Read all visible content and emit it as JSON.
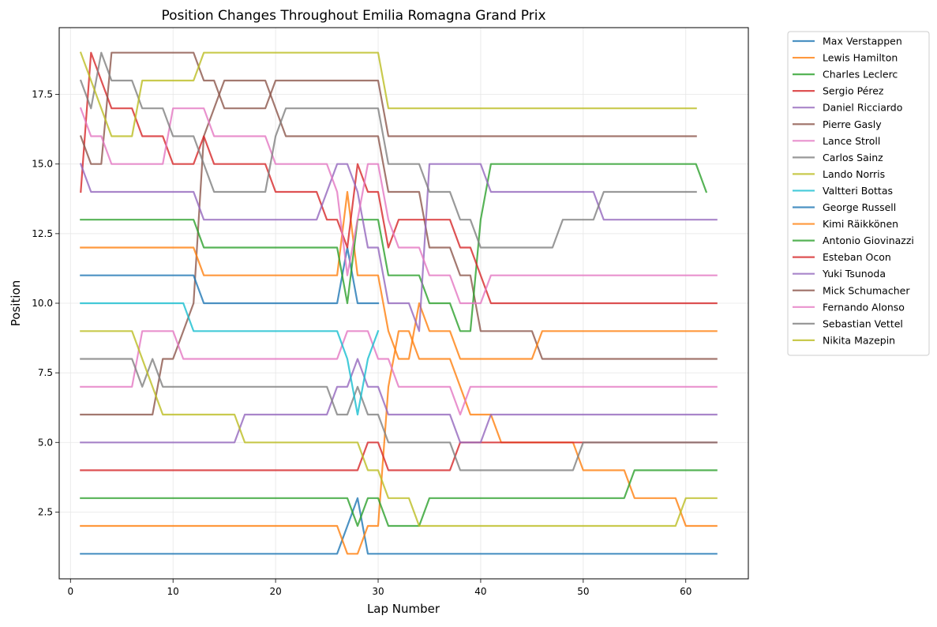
{
  "chart_data": {
    "type": "line",
    "title": "Position Changes Throughout Emilia Romagna Grand Prix",
    "xlabel": "Lap Number",
    "ylabel": "Position",
    "xlim": [
      -1.1,
      66.1
    ],
    "ylim": [
      19.9,
      0.1
    ],
    "y_inverted": true,
    "x_ticks": [
      0,
      10,
      20,
      30,
      40,
      50,
      60
    ],
    "x_tick_labels": [
      "0",
      "10",
      "20",
      "30",
      "40",
      "50",
      "60"
    ],
    "y_ticks": [
      2.5,
      5.0,
      7.5,
      10.0,
      12.5,
      15.0,
      17.5
    ],
    "y_tick_labels": [
      "2.5",
      "5.0",
      "7.5",
      "10.0",
      "12.5",
      "15.0",
      "17.5"
    ],
    "grid": true,
    "legend_position": "outside-right",
    "series": [
      {
        "name": "Max Verstappen",
        "color": "#1f77b4",
        "points": [
          [
            1,
            1
          ],
          [
            26,
            1
          ],
          [
            28,
            3
          ],
          [
            29,
            1
          ],
          [
            63,
            1
          ]
        ]
      },
      {
        "name": "Lewis Hamilton",
        "color": "#ff7f0e",
        "points": [
          [
            1,
            2
          ],
          [
            26,
            2
          ],
          [
            27,
            1
          ],
          [
            28,
            1
          ],
          [
            29,
            2
          ],
          [
            30,
            2
          ],
          [
            31,
            7
          ],
          [
            32,
            9
          ],
          [
            33,
            9
          ],
          [
            34,
            8
          ],
          [
            37,
            8
          ],
          [
            38,
            7
          ],
          [
            39,
            6
          ],
          [
            40,
            6
          ],
          [
            41,
            6
          ],
          [
            42,
            5
          ],
          [
            49,
            5
          ],
          [
            50,
            4
          ],
          [
            54,
            4
          ],
          [
            55,
            3
          ],
          [
            59,
            3
          ],
          [
            60,
            2
          ],
          [
            63,
            2
          ]
        ]
      },
      {
        "name": "Charles Leclerc",
        "color": "#2ca02c",
        "points": [
          [
            1,
            3
          ],
          [
            27,
            3
          ],
          [
            28,
            2
          ],
          [
            29,
            3
          ],
          [
            30,
            3
          ],
          [
            31,
            2
          ],
          [
            34,
            2
          ],
          [
            35,
            3
          ],
          [
            54,
            3
          ],
          [
            55,
            4
          ],
          [
            63,
            4
          ]
        ]
      },
      {
        "name": "Sergio Pérez",
        "color": "#d62728",
        "points": [
          [
            1,
            4
          ],
          [
            28,
            4
          ],
          [
            29,
            5
          ],
          [
            30,
            5
          ],
          [
            31,
            4
          ],
          [
            37,
            4
          ],
          [
            38,
            5
          ],
          [
            63,
            5
          ]
        ]
      },
      {
        "name": "Daniel Ricciardo",
        "color": "#9467bd",
        "points": [
          [
            1,
            5
          ],
          [
            16,
            5
          ],
          [
            17,
            6
          ],
          [
            25,
            6
          ],
          [
            26,
            7
          ],
          [
            27,
            7
          ],
          [
            28,
            8
          ],
          [
            29,
            7
          ],
          [
            30,
            7
          ],
          [
            31,
            6
          ],
          [
            37,
            6
          ],
          [
            38,
            5
          ],
          [
            40,
            5
          ],
          [
            41,
            6
          ],
          [
            63,
            6
          ]
        ]
      },
      {
        "name": "Pierre Gasly",
        "color": "#8c564b",
        "points": [
          [
            1,
            6
          ],
          [
            8,
            6
          ],
          [
            9,
            8
          ],
          [
            10,
            8
          ],
          [
            11,
            9
          ],
          [
            12,
            10
          ],
          [
            13,
            16
          ],
          [
            14,
            17
          ],
          [
            15,
            18
          ],
          [
            19,
            18
          ],
          [
            20,
            17
          ],
          [
            21,
            16
          ],
          [
            30,
            16
          ],
          [
            31,
            14
          ],
          [
            34,
            14
          ],
          [
            35,
            12
          ],
          [
            37,
            12
          ],
          [
            38,
            11
          ],
          [
            39,
            11
          ],
          [
            40,
            9
          ],
          [
            45,
            9
          ],
          [
            46,
            8
          ],
          [
            63,
            8
          ]
        ]
      },
      {
        "name": "Lance Stroll",
        "color": "#e377c2",
        "points": [
          [
            1,
            7
          ],
          [
            6,
            7
          ],
          [
            7,
            9
          ],
          [
            10,
            9
          ],
          [
            11,
            8
          ],
          [
            26,
            8
          ],
          [
            27,
            9
          ],
          [
            29,
            9
          ],
          [
            30,
            8
          ],
          [
            31,
            8
          ],
          [
            32,
            7
          ],
          [
            37,
            7
          ],
          [
            38,
            6
          ],
          [
            39,
            7
          ],
          [
            63,
            7
          ]
        ]
      },
      {
        "name": "Carlos Sainz",
        "color": "#7f7f7f",
        "points": [
          [
            1,
            8
          ],
          [
            6,
            8
          ],
          [
            7,
            7
          ],
          [
            8,
            8
          ],
          [
            9,
            7
          ],
          [
            25,
            7
          ],
          [
            26,
            6
          ],
          [
            27,
            6
          ],
          [
            28,
            7
          ],
          [
            29,
            6
          ],
          [
            30,
            6
          ],
          [
            31,
            5
          ],
          [
            37,
            5
          ],
          [
            38,
            4
          ],
          [
            49,
            4
          ],
          [
            50,
            5
          ],
          [
            63,
            5
          ]
        ]
      },
      {
        "name": "Lando Norris",
        "color": "#bcbd22",
        "points": [
          [
            1,
            9
          ],
          [
            6,
            9
          ],
          [
            9,
            6
          ],
          [
            16,
            6
          ],
          [
            17,
            5
          ],
          [
            28,
            5
          ],
          [
            29,
            4
          ],
          [
            30,
            4
          ],
          [
            31,
            3
          ],
          [
            33,
            3
          ],
          [
            34,
            2
          ],
          [
            59,
            2
          ],
          [
            60,
            3
          ],
          [
            63,
            3
          ]
        ]
      },
      {
        "name": "Valtteri Bottas",
        "color": "#17becf",
        "points": [
          [
            1,
            10
          ],
          [
            11,
            10
          ],
          [
            12,
            9
          ],
          [
            26,
            9
          ],
          [
            27,
            8
          ],
          [
            28,
            6
          ],
          [
            29,
            8
          ],
          [
            30,
            9
          ]
        ]
      },
      {
        "name": "George Russell",
        "color": "#1f77b4",
        "points": [
          [
            1,
            11
          ],
          [
            12,
            11
          ],
          [
            13,
            10
          ],
          [
            26,
            10
          ],
          [
            27,
            12
          ],
          [
            28,
            10
          ],
          [
            30,
            10
          ]
        ]
      },
      {
        "name": "Kimi Räikkönen",
        "color": "#ff7f0e",
        "points": [
          [
            1,
            12
          ],
          [
            12,
            12
          ],
          [
            13,
            11
          ],
          [
            26,
            11
          ],
          [
            27,
            14
          ],
          [
            28,
            11
          ],
          [
            30,
            11
          ],
          [
            31,
            9
          ],
          [
            32,
            8
          ],
          [
            33,
            8
          ],
          [
            34,
            10
          ],
          [
            35,
            9
          ],
          [
            37,
            9
          ],
          [
            38,
            8
          ],
          [
            45,
            8
          ],
          [
            46,
            9
          ],
          [
            63,
            9
          ]
        ]
      },
      {
        "name": "Antonio Giovinazzi",
        "color": "#2ca02c",
        "points": [
          [
            1,
            13
          ],
          [
            12,
            13
          ],
          [
            13,
            12
          ],
          [
            26,
            12
          ],
          [
            27,
            10
          ],
          [
            28,
            13
          ],
          [
            30,
            13
          ],
          [
            31,
            11
          ],
          [
            34,
            11
          ],
          [
            35,
            10
          ],
          [
            37,
            10
          ],
          [
            38,
            9
          ],
          [
            39,
            9
          ],
          [
            40,
            13
          ],
          [
            41,
            15
          ],
          [
            61,
            15
          ],
          [
            62,
            14
          ]
        ]
      },
      {
        "name": "Esteban Ocon",
        "color": "#d62728",
        "points": [
          [
            1,
            14
          ],
          [
            2,
            19
          ],
          [
            3,
            18
          ],
          [
            4,
            17
          ],
          [
            6,
            17
          ],
          [
            7,
            16
          ],
          [
            9,
            16
          ],
          [
            10,
            15
          ],
          [
            12,
            15
          ],
          [
            13,
            16
          ],
          [
            14,
            15
          ],
          [
            19,
            15
          ],
          [
            20,
            14
          ],
          [
            24,
            14
          ],
          [
            25,
            13
          ],
          [
            26,
            13
          ],
          [
            27,
            12
          ],
          [
            28,
            15
          ],
          [
            29,
            14
          ],
          [
            30,
            14
          ],
          [
            31,
            12
          ],
          [
            32,
            13
          ],
          [
            37,
            13
          ],
          [
            38,
            12
          ],
          [
            39,
            12
          ],
          [
            40,
            11
          ],
          [
            41,
            10
          ],
          [
            63,
            10
          ]
        ]
      },
      {
        "name": "Yuki Tsunoda",
        "color": "#9467bd",
        "points": [
          [
            1,
            15
          ],
          [
            2,
            14
          ],
          [
            12,
            14
          ],
          [
            13,
            13
          ],
          [
            24,
            13
          ],
          [
            25,
            14
          ],
          [
            26,
            15
          ],
          [
            27,
            15
          ],
          [
            28,
            14
          ],
          [
            29,
            12
          ],
          [
            30,
            12
          ],
          [
            31,
            10
          ],
          [
            33,
            10
          ],
          [
            34,
            9
          ],
          [
            35,
            15
          ],
          [
            40,
            15
          ],
          [
            41,
            14
          ],
          [
            50,
            14
          ],
          [
            51,
            14
          ],
          [
            52,
            13
          ],
          [
            63,
            13
          ]
        ]
      },
      {
        "name": "Mick Schumacher",
        "color": "#8c564b",
        "points": [
          [
            1,
            16
          ],
          [
            2,
            15
          ],
          [
            3,
            15
          ],
          [
            4,
            19
          ],
          [
            12,
            19
          ],
          [
            13,
            18
          ],
          [
            14,
            18
          ],
          [
            15,
            17
          ],
          [
            19,
            17
          ],
          [
            20,
            18
          ],
          [
            30,
            18
          ],
          [
            31,
            16
          ],
          [
            61,
            16
          ]
        ]
      },
      {
        "name": "Fernando Alonso",
        "color": "#e377c2",
        "points": [
          [
            1,
            17
          ],
          [
            2,
            16
          ],
          [
            3,
            16
          ],
          [
            4,
            15
          ],
          [
            9,
            15
          ],
          [
            10,
            17
          ],
          [
            13,
            17
          ],
          [
            14,
            16
          ],
          [
            19,
            16
          ],
          [
            20,
            15
          ],
          [
            25,
            15
          ],
          [
            26,
            14
          ],
          [
            27,
            11
          ],
          [
            28,
            13
          ],
          [
            29,
            15
          ],
          [
            30,
            15
          ],
          [
            31,
            13
          ],
          [
            32,
            12
          ],
          [
            34,
            12
          ],
          [
            35,
            11
          ],
          [
            37,
            11
          ],
          [
            38,
            10
          ],
          [
            40,
            10
          ],
          [
            41,
            11
          ],
          [
            63,
            11
          ]
        ]
      },
      {
        "name": "Sebastian Vettel",
        "color": "#7f7f7f",
        "points": [
          [
            1,
            18
          ],
          [
            2,
            17
          ],
          [
            3,
            19
          ],
          [
            4,
            18
          ],
          [
            6,
            18
          ],
          [
            7,
            17
          ],
          [
            9,
            17
          ],
          [
            10,
            16
          ],
          [
            12,
            16
          ],
          [
            13,
            15
          ],
          [
            14,
            14
          ],
          [
            19,
            14
          ],
          [
            20,
            16
          ],
          [
            21,
            17
          ],
          [
            30,
            17
          ],
          [
            31,
            15
          ],
          [
            34,
            15
          ],
          [
            35,
            14
          ],
          [
            37,
            14
          ],
          [
            38,
            13
          ],
          [
            39,
            13
          ],
          [
            40,
            12
          ],
          [
            47,
            12
          ],
          [
            48,
            13
          ],
          [
            51,
            13
          ],
          [
            52,
            14
          ],
          [
            61,
            14
          ]
        ]
      },
      {
        "name": "Nikita Mazepin",
        "color": "#bcbd22",
        "points": [
          [
            1,
            19
          ],
          [
            4,
            16
          ],
          [
            6,
            16
          ],
          [
            7,
            18
          ],
          [
            12,
            18
          ],
          [
            13,
            19
          ],
          [
            30,
            19
          ],
          [
            31,
            17
          ],
          [
            61,
            17
          ]
        ]
      }
    ]
  }
}
